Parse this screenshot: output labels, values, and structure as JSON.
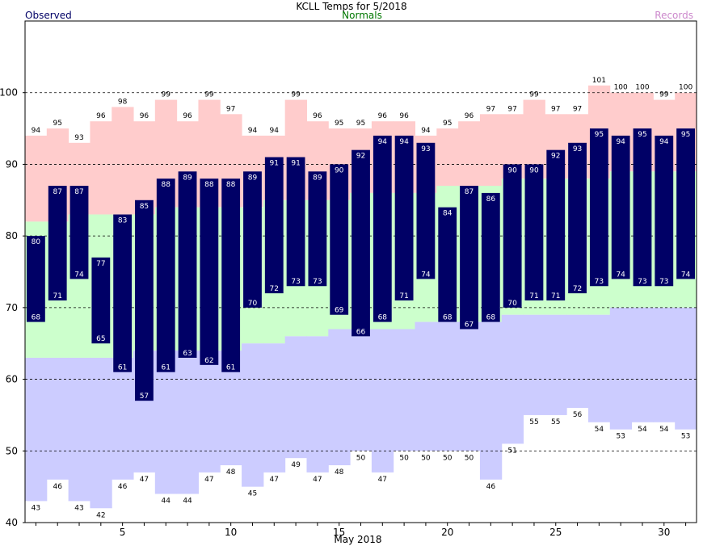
{
  "header": {
    "title": "KCLL Temps for 5/2018",
    "observed_label": "Observed",
    "normals_label": "Normals",
    "records_label": "Records"
  },
  "colors": {
    "observed": "#000066",
    "normals_label": "#007700",
    "records_label": "#cc88cc",
    "record_band": "#ffcccc",
    "normal_band": "#ccffcc",
    "lower_band": "#ccccff",
    "grid": "#000000"
  },
  "chart_data": {
    "type": "bar",
    "title": "KCLL Temps for 5/2018",
    "xlabel": "May 2018",
    "ylabel": "",
    "ylim": [
      40,
      110
    ],
    "yticks": [
      40,
      50,
      60,
      70,
      80,
      90,
      100
    ],
    "xticks": [
      5,
      10,
      15,
      20,
      25,
      30
    ],
    "grid": "dashed horizontal at 50, 60, 70, 80, 90, 100",
    "days": [
      1,
      2,
      3,
      4,
      5,
      6,
      7,
      8,
      9,
      10,
      11,
      12,
      13,
      14,
      15,
      16,
      17,
      18,
      19,
      20,
      21,
      22,
      23,
      24,
      25,
      26,
      27,
      28,
      29,
      30,
      31
    ],
    "series": [
      {
        "name": "Records",
        "values_high": [
          94,
          95,
          93,
          96,
          98,
          96,
          99,
          96,
          99,
          97,
          94,
          94,
          99,
          96,
          95,
          95,
          96,
          96,
          94,
          95,
          96,
          97,
          97,
          99,
          97,
          97,
          101,
          100,
          100,
          99,
          100
        ]
      },
      {
        "name": "Records",
        "values_low": [
          43,
          46,
          43,
          42,
          46,
          47,
          44,
          44,
          47,
          48,
          45,
          47,
          49,
          47,
          48,
          50,
          47,
          50,
          50,
          50,
          50,
          46,
          51,
          55,
          55,
          56,
          54,
          53,
          54,
          54,
          53
        ]
      },
      {
        "name": "Normals",
        "values_high": [
          82,
          82,
          83,
          83,
          83,
          83,
          84,
          84,
          84,
          84,
          84,
          85,
          85,
          85,
          85,
          86,
          86,
          86,
          86,
          87,
          87,
          87,
          88,
          88,
          88,
          88,
          88,
          89,
          89,
          89,
          89
        ]
      },
      {
        "name": "Normals",
        "values_low": [
          63,
          63,
          63,
          63,
          63,
          64,
          64,
          64,
          64,
          64,
          65,
          65,
          66,
          66,
          67,
          67,
          67,
          67,
          68,
          68,
          68,
          68,
          69,
          69,
          69,
          69,
          69,
          70,
          70,
          70,
          70
        ]
      },
      {
        "name": "Observed",
        "values_high": [
          80,
          87,
          87,
          77,
          83,
          85,
          88,
          89,
          88,
          88,
          89,
          91,
          91,
          89,
          90,
          92,
          94,
          94,
          93,
          84,
          87,
          86,
          90,
          90,
          92,
          93,
          95,
          94,
          95,
          94,
          95
        ]
      },
      {
        "name": "Observed",
        "values_low": [
          68,
          71,
          74,
          65,
          61,
          57,
          61,
          63,
          62,
          61,
          70,
          72,
          73,
          73,
          69,
          66,
          68,
          71,
          74,
          68,
          67,
          68,
          70,
          71,
          71,
          72,
          73,
          74,
          73,
          73,
          74
        ]
      }
    ]
  }
}
